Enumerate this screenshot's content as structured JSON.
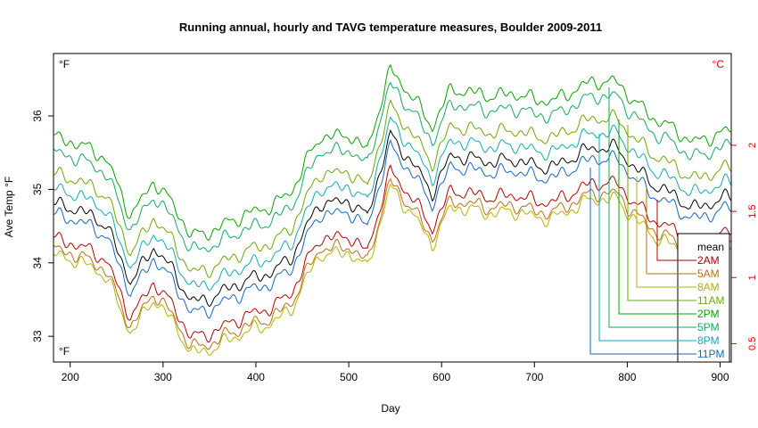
{
  "chart_data": {
    "type": "line",
    "title": "Running annual, hourly and TAVG temperature measures, Boulder 2009-2011",
    "xlabel": "Day",
    "ylabel": "Ave Temp °F",
    "corner_labels": {
      "top_left": "°F",
      "bottom_left": "°F",
      "top_right": "°C"
    },
    "xlim": [
      182,
      912
    ],
    "ylim": [
      32.65,
      36.85
    ],
    "x_ticks": [
      200,
      300,
      400,
      500,
      600,
      700,
      800,
      900
    ],
    "y_ticks": [
      33,
      34,
      35,
      36
    ],
    "y2_ticks_celsius": [
      0.5,
      1,
      1.5,
      2
    ],
    "colors": {
      "mean": "#000000",
      "2AM": "#b00000",
      "5AM": "#b56f12",
      "8AM": "#b8b000",
      "11AM": "#6aa800",
      "2PM": "#089f00",
      "5PM": "#13a95a",
      "8PM": "#11a9b8",
      "11PM": "#1565c0",
      "celsius_axis": "#e00000"
    },
    "x_knots": [
      182,
      200,
      240,
      265,
      290,
      330,
      380,
      440,
      470,
      500,
      520,
      545,
      570,
      590,
      610,
      640,
      700,
      760,
      790,
      830,
      870,
      912
    ],
    "base_knots": [
      34.25,
      34.2,
      33.85,
      33.2,
      33.6,
      32.9,
      33.05,
      33.5,
      34.2,
      34.3,
      34.0,
      35.1,
      34.8,
      34.35,
      34.8,
      34.85,
      34.7,
      34.9,
      35.0,
      34.4,
      34.2,
      34.25
    ],
    "series": [
      {
        "name": "mean",
        "offset": 0.6
      },
      {
        "name": "2AM",
        "offset": 0.12
      },
      {
        "name": "5AM",
        "offset": -0.02
      },
      {
        "name": "8AM",
        "offset": -0.1
      },
      {
        "name": "11AM",
        "offset": 1.0
      },
      {
        "name": "2PM",
        "offset": 1.5
      },
      {
        "name": "5PM",
        "offset": 1.3
      },
      {
        "name": "8PM",
        "offset": 0.8
      },
      {
        "name": "11PM",
        "offset": 0.45
      }
    ],
    "legend": {
      "placement": "bottom-right",
      "title": "mean",
      "entries": [
        "2AM",
        "5AM",
        "8AM",
        "11AM",
        "2PM",
        "5PM",
        "8PM",
        "11PM"
      ]
    }
  }
}
